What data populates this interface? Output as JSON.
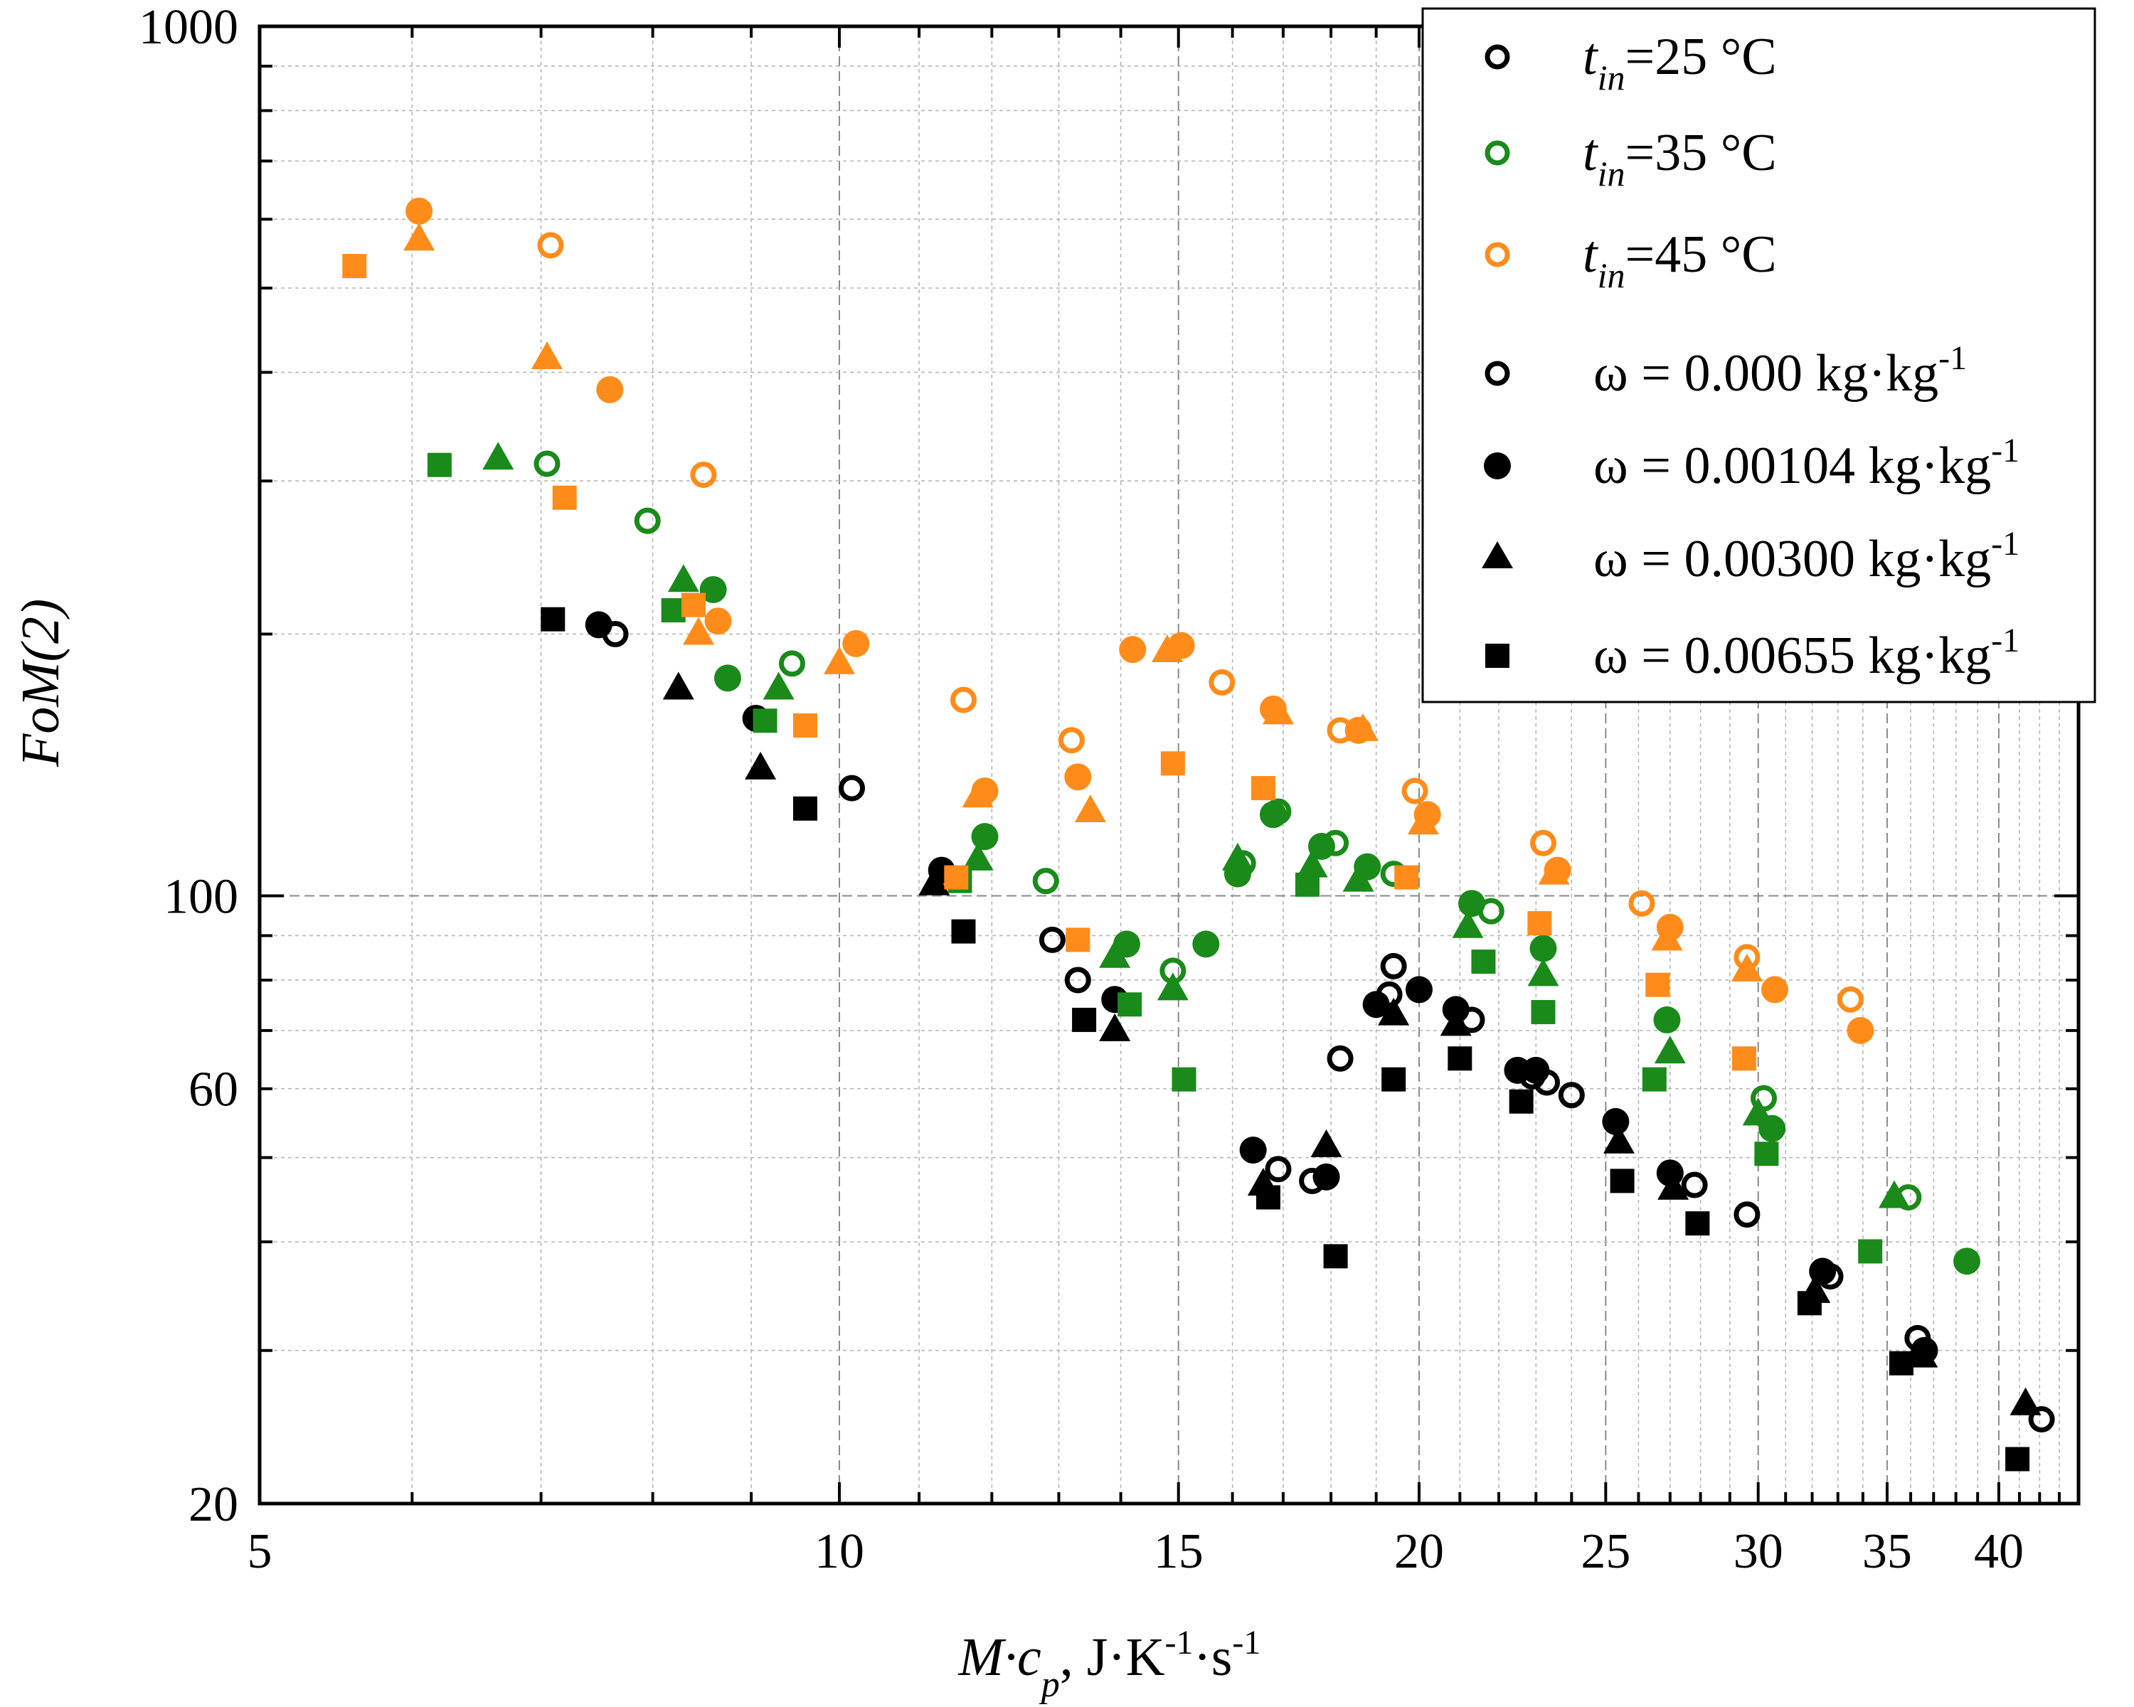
{
  "chart_data": {
    "type": "scatter",
    "xscale": "log",
    "yscale": "log",
    "xlim": [
      5,
      44
    ],
    "ylim": [
      20,
      1000
    ],
    "xlabel": {
      "main": "M·c",
      "sub": "p",
      "unit": ", J·K",
      "sup1": "-1",
      "unit2": "·s",
      "sup2": "-1"
    },
    "ylabel": "FoM(2)",
    "xticks": [
      5,
      10,
      15,
      20,
      25,
      30,
      35,
      40
    ],
    "xtick_labels": [
      "5",
      "10",
      "15",
      "20",
      "25",
      "30",
      "35",
      "40"
    ],
    "yticks": [
      20,
      60,
      100,
      1000
    ],
    "ytick_labels": [
      "20",
      "60",
      "100",
      "1000"
    ],
    "colors": {
      "25": "#000000",
      "35": "#1a8a1a",
      "45": "#ff8c1a"
    },
    "legend": {
      "position": "top-right",
      "temps": [
        {
          "var": "t",
          "sub": "in",
          "text": "=25 °C",
          "color": "#000000"
        },
        {
          "var": "t",
          "sub": "in",
          "text": "=35 °C",
          "color": "#1a8a1a"
        },
        {
          "var": "t",
          "sub": "in",
          "text": "=45 °C",
          "color": "#ff8c1a"
        }
      ],
      "moistures": [
        {
          "text": "ω = 0.000 kg·kg",
          "sup": "-1",
          "marker": "circle-open"
        },
        {
          "text": "ω = 0.00104 kg·kg",
          "sup": "-1",
          "marker": "circle"
        },
        {
          "text": "ω = 0.00300 kg·kg",
          "sup": "-1",
          "marker": "triangle"
        },
        {
          "text": "ω = 0.00655 kg·kg",
          "sup": "-1",
          "marker": "square"
        }
      ]
    },
    "series": [
      {
        "name": "t_in=25 °C, ω=0.000",
        "temp": "25",
        "marker": "circle-open",
        "points": [
          [
            7.65,
            200
          ],
          [
            10.15,
            133
          ],
          [
            12.9,
            89
          ],
          [
            13.3,
            80
          ],
          [
            16.9,
            48.5
          ],
          [
            17.6,
            47
          ],
          [
            18.2,
            65
          ],
          [
            19.3,
            77
          ],
          [
            19.4,
            83
          ],
          [
            21.3,
            72
          ],
          [
            22.9,
            62
          ],
          [
            23.3,
            61
          ],
          [
            24.0,
            59
          ],
          [
            27.8,
            46.5
          ],
          [
            29.6,
            43
          ],
          [
            32.7,
            36.5
          ],
          [
            36.3,
            31
          ],
          [
            42.1,
            25
          ]
        ]
      },
      {
        "name": "t_in=25 °C, ω=0.00104",
        "temp": "25",
        "marker": "circle",
        "points": [
          [
            7.5,
            205
          ],
          [
            9.05,
            160
          ],
          [
            11.3,
            107
          ],
          [
            13.9,
            76
          ],
          [
            16.4,
            51
          ],
          [
            17.9,
            47.5
          ],
          [
            19.0,
            75
          ],
          [
            20.0,
            78
          ],
          [
            20.9,
            74
          ],
          [
            22.5,
            63
          ],
          [
            23.0,
            63
          ],
          [
            25.3,
            55
          ],
          [
            27.0,
            48
          ],
          [
            32.4,
            37
          ],
          [
            36.6,
            30
          ]
        ]
      },
      {
        "name": "t_in=25 °C, ω=0.00300",
        "temp": "25",
        "marker": "triangle",
        "points": [
          [
            8.25,
            173
          ],
          [
            9.1,
            140
          ],
          [
            11.2,
            103
          ],
          [
            13.9,
            70
          ],
          [
            16.6,
            46.5
          ],
          [
            17.9,
            51.5
          ],
          [
            19.4,
            73
          ],
          [
            20.9,
            71
          ],
          [
            25.4,
            52
          ],
          [
            27.1,
            46
          ],
          [
            32.1,
            35
          ],
          [
            36.5,
            29.5
          ],
          [
            41.3,
            26
          ]
        ]
      },
      {
        "name": "t_in=25 °C, ω=0.00655",
        "temp": "25",
        "marker": "square",
        "points": [
          [
            7.1,
            208
          ],
          [
            9.6,
            126
          ],
          [
            11.6,
            91
          ],
          [
            13.4,
            72
          ],
          [
            16.7,
            45
          ],
          [
            18.1,
            38.5
          ],
          [
            19.4,
            61.5
          ],
          [
            21.0,
            65
          ],
          [
            22.6,
            58
          ],
          [
            25.5,
            47
          ],
          [
            27.9,
            42
          ],
          [
            31.9,
            34
          ],
          [
            35.6,
            29
          ],
          [
            40.9,
            22.5
          ]
        ]
      },
      {
        "name": "t_in=35 °C, ω=0.000",
        "temp": "35",
        "marker": "circle-open",
        "points": [
          [
            7.05,
            314
          ],
          [
            7.95,
            270
          ],
          [
            9.45,
            185
          ],
          [
            12.8,
            104
          ],
          [
            14.9,
            82
          ],
          [
            16.2,
            109
          ],
          [
            16.9,
            125
          ],
          [
            18.1,
            115
          ],
          [
            19.4,
            106
          ],
          [
            21.8,
            96
          ],
          [
            30.2,
            58.5
          ],
          [
            35.9,
            45
          ]
        ]
      },
      {
        "name": "t_in=35 °C, ω=0.00104",
        "temp": "35",
        "marker": "circle",
        "points": [
          [
            8.6,
            225
          ],
          [
            8.75,
            178
          ],
          [
            11.9,
            117
          ],
          [
            14.1,
            88
          ],
          [
            15.5,
            88
          ],
          [
            16.1,
            106
          ],
          [
            16.8,
            124
          ],
          [
            17.8,
            114
          ],
          [
            18.8,
            108
          ],
          [
            21.3,
            98
          ],
          [
            23.2,
            87
          ],
          [
            26.9,
            72
          ],
          [
            30.5,
            54
          ],
          [
            38.5,
            38
          ]
        ]
      },
      {
        "name": "t_in=35 °C, ω=0.00300",
        "temp": "35",
        "marker": "triangle",
        "points": [
          [
            6.65,
            318
          ],
          [
            8.3,
            230
          ],
          [
            9.3,
            173
          ],
          [
            11.8,
            110
          ],
          [
            13.9,
            85
          ],
          [
            14.9,
            78
          ],
          [
            16.1,
            110
          ],
          [
            17.6,
            108
          ],
          [
            18.6,
            104
          ],
          [
            21.2,
            92
          ],
          [
            23.2,
            81
          ],
          [
            27.0,
            66
          ],
          [
            30.0,
            56
          ],
          [
            35.3,
            45
          ]
        ]
      },
      {
        "name": "t_in=35 °C, ω=0.00655",
        "temp": "35",
        "marker": "square",
        "points": [
          [
            6.2,
            313
          ],
          [
            8.2,
            213
          ],
          [
            9.15,
            159
          ],
          [
            11.55,
            104
          ],
          [
            14.15,
            75
          ],
          [
            15.1,
            61.5
          ],
          [
            17.5,
            103
          ],
          [
            21.6,
            84
          ],
          [
            23.2,
            73.5
          ],
          [
            26.5,
            61.5
          ],
          [
            30.3,
            50.5
          ],
          [
            34.3,
            39
          ]
        ]
      },
      {
        "name": "t_in=45 °C, ω=0.000",
        "temp": "45",
        "marker": "circle-open",
        "points": [
          [
            7.08,
            560
          ],
          [
            8.5,
            305
          ],
          [
            11.6,
            168
          ],
          [
            13.2,
            151
          ],
          [
            15.8,
            176
          ],
          [
            18.2,
            155
          ],
          [
            19.9,
            132
          ],
          [
            23.2,
            115
          ],
          [
            26.1,
            98
          ],
          [
            29.6,
            85
          ],
          [
            33.5,
            76
          ]
        ]
      },
      {
        "name": "t_in=45 °C, ω=0.00104",
        "temp": "45",
        "marker": "circle",
        "points": [
          [
            6.05,
            613
          ],
          [
            7.6,
            382
          ],
          [
            8.65,
            207
          ],
          [
            10.2,
            195
          ],
          [
            11.9,
            132
          ],
          [
            13.3,
            137
          ],
          [
            14.2,
            192
          ],
          [
            15.05,
            194
          ],
          [
            16.8,
            164
          ],
          [
            18.6,
            155
          ],
          [
            20.2,
            124
          ],
          [
            23.6,
            107
          ],
          [
            27.0,
            92
          ],
          [
            30.6,
            78
          ],
          [
            33.9,
            70
          ]
        ]
      },
      {
        "name": "t_in=45 °C, ω=0.00300",
        "temp": "45",
        "marker": "triangle",
        "points": [
          [
            6.05,
            568
          ],
          [
            7.05,
            415
          ],
          [
            8.45,
            200
          ],
          [
            10.0,
            185
          ],
          [
            11.8,
            130
          ],
          [
            13.5,
            125
          ],
          [
            14.8,
            191
          ],
          [
            16.9,
            162
          ],
          [
            18.7,
            155
          ],
          [
            20.1,
            121
          ],
          [
            23.5,
            106
          ],
          [
            26.9,
            89
          ],
          [
            29.6,
            82
          ]
        ]
      },
      {
        "name": "t_in=45 °C, ω=0.00655",
        "temp": "45",
        "marker": "square",
        "points": [
          [
            5.6,
            530
          ],
          [
            7.2,
            287
          ],
          [
            8.4,
            216
          ],
          [
            9.6,
            157
          ],
          [
            11.5,
            105
          ],
          [
            13.3,
            89
          ],
          [
            14.9,
            142
          ],
          [
            16.6,
            133
          ],
          [
            19.7,
            105
          ],
          [
            23.1,
            93
          ],
          [
            26.6,
            79
          ],
          [
            29.5,
            65
          ]
        ]
      }
    ]
  }
}
